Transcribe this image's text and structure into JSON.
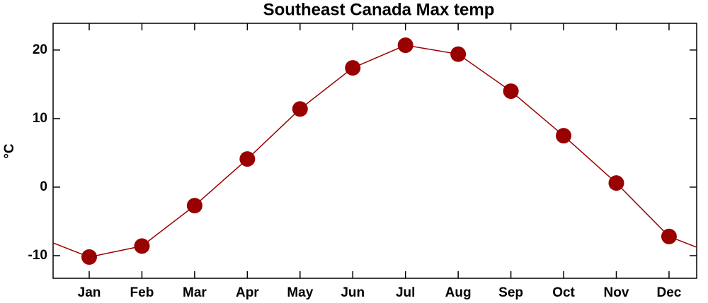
{
  "chart_data": {
    "type": "line",
    "title": "Southeast Canada Max temp",
    "y_label": "°C",
    "categories": [
      "Jan",
      "Feb",
      "Mar",
      "Apr",
      "May",
      "Jun",
      "Jul",
      "Aug",
      "Sep",
      "Oct",
      "Nov",
      "Dec"
    ],
    "series": [
      {
        "name": "Max temp",
        "color": "#990000",
        "values": [
          -10.2,
          -8.6,
          -2.7,
          4.1,
          11.4,
          17.4,
          20.7,
          19.4,
          14.0,
          7.5,
          0.6,
          -7.2
        ]
      }
    ],
    "ylim": [
      -13.3,
      23.9
    ],
    "yticks": [
      -10,
      0,
      10,
      20
    ]
  }
}
